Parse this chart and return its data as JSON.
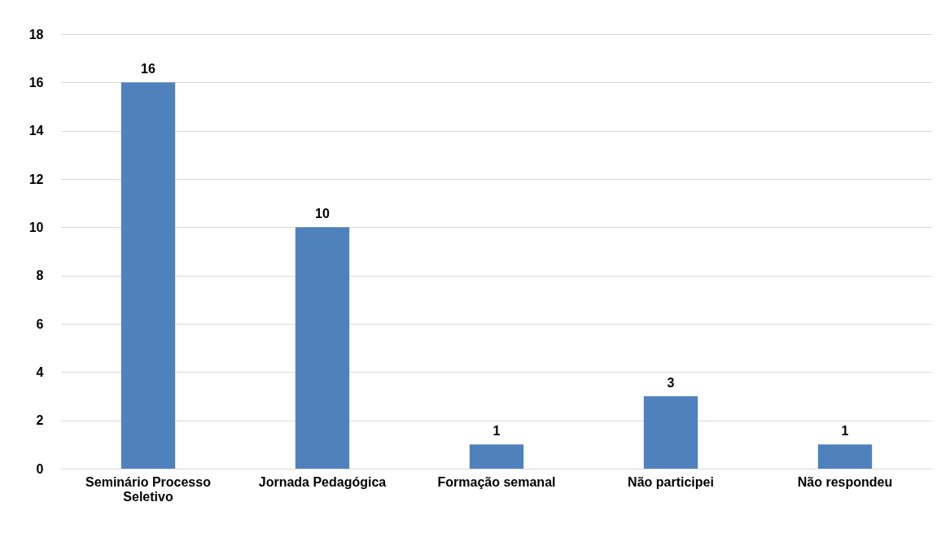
{
  "chart_data": {
    "type": "bar",
    "categories": [
      "Seminário Processo Seletivo",
      "Jornada Pedagógica",
      "Formação semanal",
      "Não participei",
      "Não respondeu"
    ],
    "values": [
      16,
      10,
      1,
      3,
      1
    ],
    "color": "#4f81bd",
    "ylim": [
      0,
      18
    ],
    "yticks": [
      0,
      2,
      4,
      6,
      8,
      10,
      12,
      14,
      16,
      18
    ],
    "grid": "y",
    "data_labels": true
  }
}
